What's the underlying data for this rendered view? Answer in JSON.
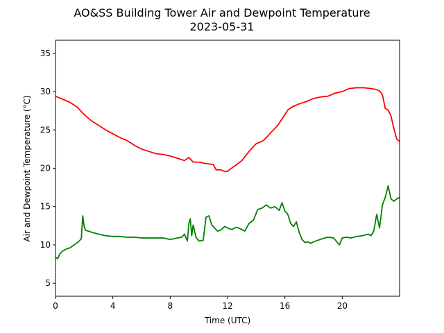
{
  "chart_data": {
    "type": "line",
    "title": "AO&SS Building Tower Air and Dewpoint Temperature",
    "subtitle": "2023-05-31",
    "xlabel": "Time (UTC)",
    "ylabel": "Air and Dewpoint Temperature (°C)",
    "xlim": [
      0,
      24
    ],
    "ylim": [
      3.3,
      36.7
    ],
    "xticks": [
      0,
      4,
      8,
      12,
      16,
      20
    ],
    "yticks": [
      5,
      10,
      15,
      20,
      25,
      30,
      35
    ],
    "grid": false,
    "series": [
      {
        "color": "#ff0000",
        "x": [
          0,
          0.5,
          1.0,
          1.5,
          2.0,
          2.5,
          3.0,
          3.5,
          4.0,
          4.5,
          5.0,
          5.5,
          6.0,
          6.5,
          7.0,
          7.5,
          8.0,
          8.5,
          9.0,
          9.3,
          9.6,
          10.0,
          10.5,
          11.0,
          11.2,
          11.5,
          11.8,
          12.0,
          12.2,
          12.5,
          13.0,
          13.5,
          14.0,
          14.5,
          15.0,
          15.5,
          16.0,
          16.2,
          16.5,
          17.0,
          17.5,
          18.0,
          18.5,
          19.0,
          19.5,
          20.0,
          20.5,
          21.0,
          21.5,
          22.0,
          22.3,
          22.6,
          22.8,
          23.0,
          23.2,
          23.4,
          23.6,
          23.8,
          24.0
        ],
        "values": [
          29.4,
          29.0,
          28.6,
          28.0,
          27.0,
          26.2,
          25.6,
          25.0,
          24.5,
          24.0,
          23.6,
          23.0,
          22.5,
          22.2,
          21.9,
          21.8,
          21.6,
          21.3,
          21.0,
          21.4,
          20.8,
          20.8,
          20.6,
          20.5,
          19.8,
          19.8,
          19.6,
          19.6,
          19.9,
          20.3,
          21.0,
          22.2,
          23.2,
          23.6,
          24.6,
          25.6,
          27.0,
          27.6,
          28.0,
          28.4,
          28.7,
          29.1,
          29.3,
          29.4,
          29.8,
          30.0,
          30.4,
          30.5,
          30.5,
          30.4,
          30.3,
          30.1,
          29.6,
          27.8,
          27.6,
          26.8,
          25.2,
          23.8,
          23.5
        ]
      },
      {
        "color": "#008000",
        "x": [
          0,
          0.15,
          0.3,
          0.5,
          0.8,
          1.0,
          1.3,
          1.6,
          1.8,
          1.9,
          2.0,
          2.1,
          2.3,
          2.6,
          3.0,
          3.5,
          4.0,
          4.5,
          5.0,
          5.5,
          6.0,
          6.5,
          7.0,
          7.5,
          8.0,
          8.5,
          8.8,
          9.0,
          9.2,
          9.3,
          9.4,
          9.5,
          9.6,
          9.8,
          10.0,
          10.3,
          10.5,
          10.7,
          10.9,
          11.1,
          11.3,
          11.5,
          11.8,
          12.0,
          12.3,
          12.6,
          12.9,
          13.2,
          13.5,
          13.8,
          14.1,
          14.4,
          14.7,
          15.0,
          15.3,
          15.6,
          15.8,
          16.0,
          16.2,
          16.4,
          16.6,
          16.8,
          17.0,
          17.2,
          17.4,
          17.6,
          17.8,
          18.0,
          18.3,
          18.6,
          19.0,
          19.4,
          19.8,
          20.0,
          20.3,
          20.6,
          21.0,
          21.4,
          21.8,
          22.0,
          22.2,
          22.4,
          22.6,
          22.8,
          23.0,
          23.2,
          23.4,
          23.6,
          23.8,
          24.0
        ],
        "values": [
          8.4,
          8.2,
          8.8,
          9.2,
          9.5,
          9.6,
          10.0,
          10.4,
          10.8,
          13.8,
          12.4,
          11.9,
          11.8,
          11.6,
          11.4,
          11.2,
          11.1,
          11.1,
          11.0,
          11.0,
          10.9,
          10.9,
          10.9,
          10.9,
          10.7,
          10.9,
          11.0,
          11.4,
          10.5,
          12.8,
          13.4,
          11.2,
          12.6,
          11.0,
          10.5,
          10.6,
          13.6,
          13.8,
          12.6,
          12.2,
          11.8,
          11.9,
          12.4,
          12.2,
          12.0,
          12.3,
          12.1,
          11.8,
          12.8,
          13.2,
          14.6,
          14.8,
          15.2,
          14.8,
          15.0,
          14.5,
          15.5,
          14.4,
          14.0,
          12.8,
          12.4,
          13.0,
          11.6,
          10.7,
          10.3,
          10.4,
          10.2,
          10.4,
          10.6,
          10.8,
          11.0,
          10.9,
          10.0,
          10.9,
          11.0,
          10.9,
          11.1,
          11.2,
          11.4,
          11.2,
          11.8,
          14.0,
          12.2,
          15.2,
          16.2,
          17.7,
          16.0,
          15.7,
          16.0,
          16.2
        ]
      }
    ]
  }
}
